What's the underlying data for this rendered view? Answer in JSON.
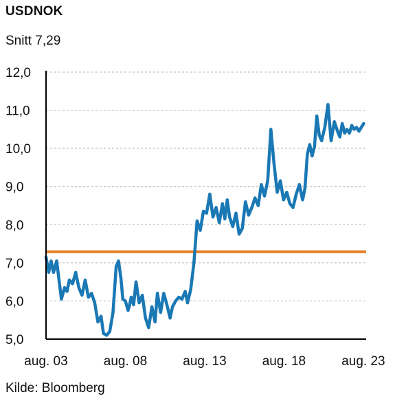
{
  "title": "USDNOK",
  "subtitle": "Snitt 7,29",
  "source": "Kilde: Bloomberg",
  "colors": {
    "series": "#1a78b4",
    "average": "#e87d24",
    "grid": "#b7b7b7",
    "axis": "#000000"
  },
  "chart_data": {
    "type": "line",
    "xlim": [
      2003.58,
      2023.67
    ],
    "ylim": [
      5.0,
      12.0
    ],
    "x_ticks": [
      {
        "value": 2003.58,
        "label": "aug. 03"
      },
      {
        "value": 2008.58,
        "label": "aug. 08"
      },
      {
        "value": 2013.58,
        "label": "aug. 13"
      },
      {
        "value": 2018.58,
        "label": "aug. 18"
      },
      {
        "value": 2023.58,
        "label": "aug. 23"
      }
    ],
    "y_ticks": [
      {
        "value": 5.0,
        "label": "5,0"
      },
      {
        "value": 6.0,
        "label": "6,0"
      },
      {
        "value": 7.0,
        "label": "7,0"
      },
      {
        "value": 8.0,
        "label": "8,0"
      },
      {
        "value": 9.0,
        "label": "9,0"
      },
      {
        "value": 10.0,
        "label": "10,0"
      },
      {
        "value": 11.0,
        "label": "11,0"
      },
      {
        "value": 12.0,
        "label": "12,0"
      }
    ],
    "grid": "horizontal dashed",
    "average": 7.29,
    "series": [
      {
        "x": [
          2003.58,
          2003.75,
          2003.9,
          2004.05,
          2004.25,
          2004.4,
          2004.55,
          2004.75,
          2004.9,
          2005.05,
          2005.25,
          2005.45,
          2005.65,
          2005.85,
          2006.05,
          2006.25,
          2006.45,
          2006.65,
          2006.85,
          2007.05,
          2007.2,
          2007.4,
          2007.6,
          2007.8,
          2008.0,
          2008.15,
          2008.3,
          2008.42,
          2008.58,
          2008.75,
          2008.85,
          2008.95,
          2009.1,
          2009.25,
          2009.45,
          2009.65,
          2009.85,
          2010.05,
          2010.25,
          2010.45,
          2010.6,
          2010.8,
          2011.0,
          2011.2,
          2011.4,
          2011.55,
          2011.75,
          2011.95,
          2012.15,
          2012.35,
          2012.5,
          2012.7,
          2012.9,
          2013.1,
          2013.3,
          2013.5,
          2013.7,
          2013.9,
          2014.1,
          2014.3,
          2014.5,
          2014.7,
          2014.85,
          2015.0,
          2015.15,
          2015.35,
          2015.55,
          2015.75,
          2015.95,
          2016.15,
          2016.35,
          2016.55,
          2016.75,
          2016.95,
          2017.15,
          2017.35,
          2017.55,
          2017.75,
          2017.95,
          2018.15,
          2018.35,
          2018.55,
          2018.75,
          2018.95,
          2019.15,
          2019.35,
          2019.55,
          2019.75,
          2019.9,
          2020.05,
          2020.2,
          2020.35,
          2020.5,
          2020.65,
          2020.8,
          2020.95,
          2021.15,
          2021.35,
          2021.55,
          2021.75,
          2021.95,
          2022.1,
          2022.25,
          2022.4,
          2022.55,
          2022.7,
          2022.85,
          2023.0,
          2023.15,
          2023.3,
          2023.45,
          2023.6
        ],
        "values": [
          7.15,
          6.75,
          7.05,
          6.75,
          7.05,
          6.55,
          6.05,
          6.35,
          6.25,
          6.55,
          6.45,
          6.75,
          6.35,
          6.15,
          6.55,
          6.1,
          6.2,
          5.95,
          5.45,
          5.6,
          5.15,
          5.1,
          5.2,
          5.7,
          6.9,
          7.05,
          6.6,
          6.05,
          6.0,
          5.75,
          5.9,
          6.1,
          5.9,
          6.5,
          5.95,
          6.15,
          5.55,
          5.3,
          5.85,
          5.45,
          6.2,
          5.7,
          6.2,
          5.9,
          5.55,
          5.85,
          6.0,
          6.1,
          6.05,
          6.25,
          5.95,
          6.3,
          7.0,
          8.1,
          7.85,
          8.35,
          8.3,
          8.8,
          8.2,
          8.45,
          8.05,
          8.55,
          8.15,
          8.65,
          8.2,
          7.95,
          8.3,
          7.75,
          7.9,
          8.6,
          8.25,
          8.45,
          8.7,
          8.5,
          9.05,
          8.75,
          9.15,
          10.5,
          9.6,
          8.85,
          9.15,
          8.65,
          8.85,
          8.55,
          8.45,
          8.8,
          9.05,
          8.65,
          8.95,
          9.85,
          10.1,
          9.8,
          10.05,
          10.85,
          10.35,
          10.2,
          10.55,
          11.15,
          10.2,
          10.7,
          10.45,
          10.3,
          10.65,
          10.4,
          10.5,
          10.4,
          10.6,
          10.5,
          10.55,
          10.45,
          10.55,
          10.65
        ]
      }
    ]
  }
}
